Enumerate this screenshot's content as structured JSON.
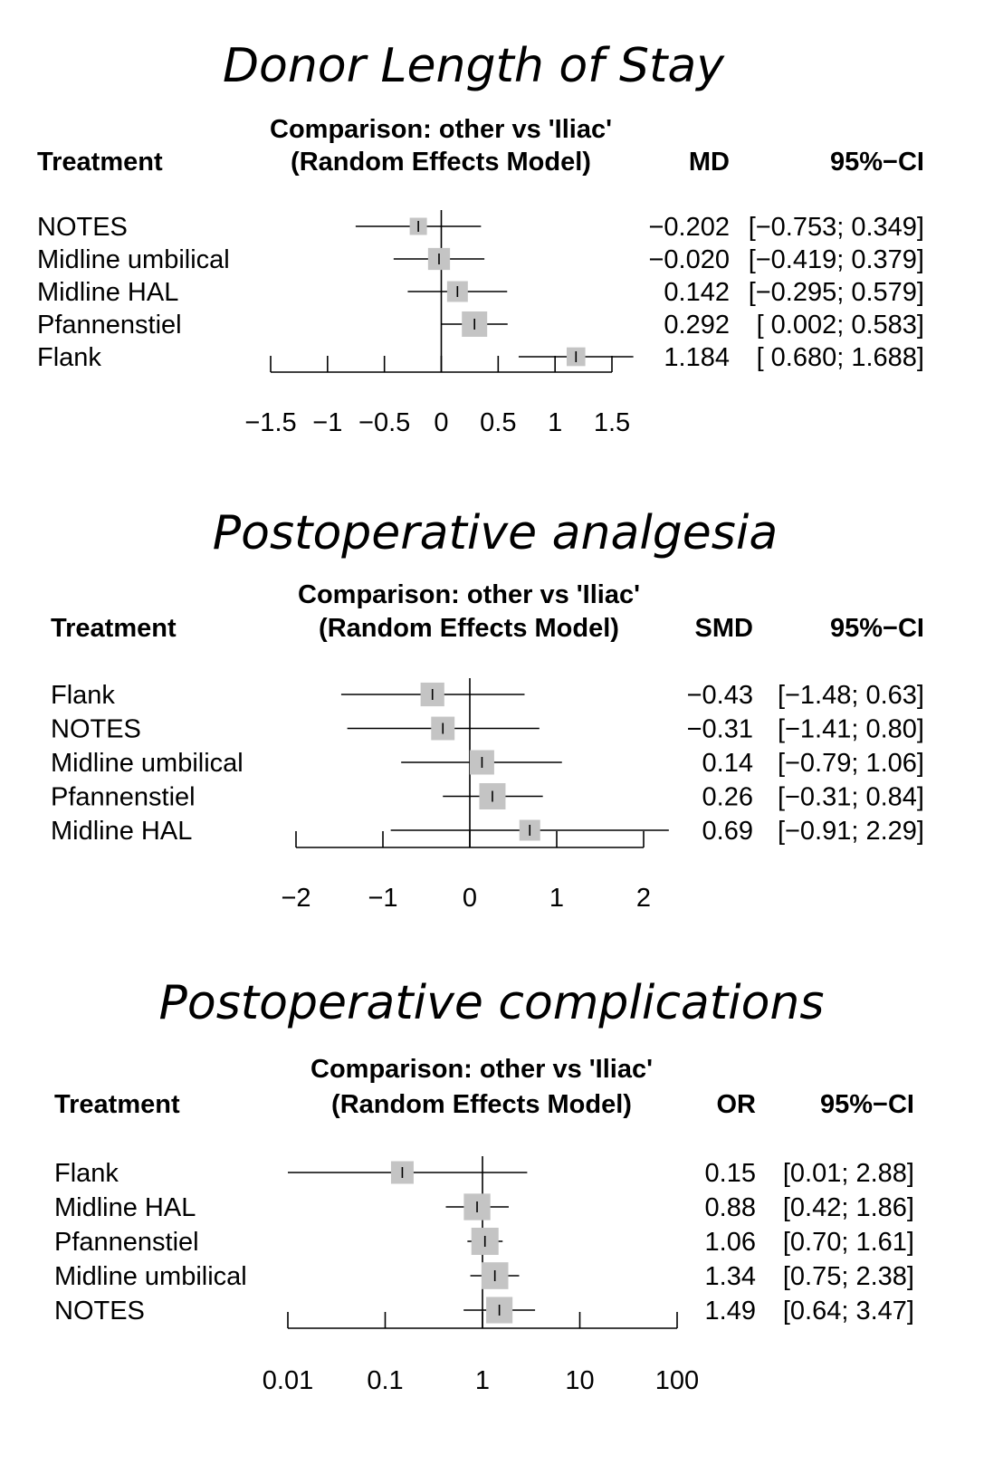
{
  "chart_data": [
    {
      "type": "forest",
      "title": "Donor Length of Stay",
      "comparison": "Comparison: other vs 'Iliac'",
      "model": "(Random Effects Model)",
      "col_treatment": "Treatment",
      "col_effect": "MD",
      "col_ci": "95%−CI",
      "scale": "linear",
      "xlim": [
        -1.5,
        1.5
      ],
      "ticks": [
        -1.5,
        -1,
        -0.5,
        0,
        0.5,
        1,
        1.5
      ],
      "tick_labels": [
        "−1.5",
        "−1",
        "−0.5",
        "0",
        "0.5",
        "1",
        "1.5"
      ],
      "reference": 0,
      "rows": [
        {
          "treatment": "NOTES",
          "est": -0.202,
          "lo": -0.753,
          "hi": 0.349,
          "est_text": "−0.202",
          "ci_text": "[−0.753; 0.349]"
        },
        {
          "treatment": "Midline umbilical",
          "est": -0.02,
          "lo": -0.419,
          "hi": 0.379,
          "est_text": "−0.020",
          "ci_text": "[−0.419; 0.379]"
        },
        {
          "treatment": "Midline HAL",
          "est": 0.142,
          "lo": -0.295,
          "hi": 0.579,
          "est_text": "0.142",
          "ci_text": "[−0.295; 0.579]"
        },
        {
          "treatment": "Pfannenstiel",
          "est": 0.292,
          "lo": 0.002,
          "hi": 0.583,
          "est_text": "0.292",
          "ci_text": "[ 0.002; 0.583]"
        },
        {
          "treatment": "Flank",
          "est": 1.184,
          "lo": 0.68,
          "hi": 1.688,
          "est_text": "1.184",
          "ci_text": "[ 0.680; 1.688]"
        }
      ]
    },
    {
      "type": "forest",
      "title": "Postoperative analgesia",
      "comparison": "Comparison: other vs 'Iliac'",
      "model": "(Random Effects Model)",
      "col_treatment": "Treatment",
      "col_effect": "SMD",
      "col_ci": "95%−CI",
      "scale": "linear",
      "xlim": [
        -2,
        2
      ],
      "ticks": [
        -2,
        -1,
        0,
        1,
        2
      ],
      "tick_labels": [
        "−2",
        "−1",
        "0",
        "1",
        "2"
      ],
      "reference": 0,
      "rows": [
        {
          "treatment": "Flank",
          "est": -0.43,
          "lo": -1.48,
          "hi": 0.63,
          "est_text": "−0.43",
          "ci_text": "[−1.48; 0.63]"
        },
        {
          "treatment": "NOTES",
          "est": -0.31,
          "lo": -1.41,
          "hi": 0.8,
          "est_text": "−0.31",
          "ci_text": "[−1.41; 0.80]"
        },
        {
          "treatment": "Midline umbilical",
          "est": 0.14,
          "lo": -0.79,
          "hi": 1.06,
          "est_text": "0.14",
          "ci_text": "[−0.79; 1.06]"
        },
        {
          "treatment": "Pfannenstiel",
          "est": 0.26,
          "lo": -0.31,
          "hi": 0.84,
          "est_text": "0.26",
          "ci_text": "[−0.31; 0.84]"
        },
        {
          "treatment": "Midline HAL",
          "est": 0.69,
          "lo": -0.91,
          "hi": 2.29,
          "est_text": "0.69",
          "ci_text": "[−0.91; 2.29]"
        }
      ]
    },
    {
      "type": "forest",
      "title": "Postoperative complications",
      "comparison": "Comparison: other vs 'Iliac'",
      "model": "(Random Effects Model)",
      "col_treatment": "Treatment",
      "col_effect": "OR",
      "col_ci": "95%−CI",
      "scale": "log",
      "xlim": [
        0.01,
        100
      ],
      "ticks": [
        0.01,
        0.1,
        1,
        10,
        100
      ],
      "tick_labels": [
        "0.01",
        "0.1",
        "1",
        "10",
        "100"
      ],
      "reference": 1,
      "rows": [
        {
          "treatment": "Flank",
          "est": 0.15,
          "lo": 0.01,
          "hi": 2.88,
          "est_text": "0.15",
          "ci_text": "[0.01; 2.88]"
        },
        {
          "treatment": "Midline HAL",
          "est": 0.88,
          "lo": 0.42,
          "hi": 1.86,
          "est_text": "0.88",
          "ci_text": "[0.42; 1.86]"
        },
        {
          "treatment": "Pfannenstiel",
          "est": 1.06,
          "lo": 0.7,
          "hi": 1.61,
          "est_text": "1.06",
          "ci_text": "[0.70; 1.61]"
        },
        {
          "treatment": "Midline umbilical",
          "est": 1.34,
          "lo": 0.75,
          "hi": 2.38,
          "est_text": "1.34",
          "ci_text": "[0.75; 2.38]"
        },
        {
          "treatment": "NOTES",
          "est": 1.49,
          "lo": 0.64,
          "hi": 3.47,
          "est_text": "1.49",
          "ci_text": "[0.64; 3.47]"
        }
      ]
    }
  ]
}
